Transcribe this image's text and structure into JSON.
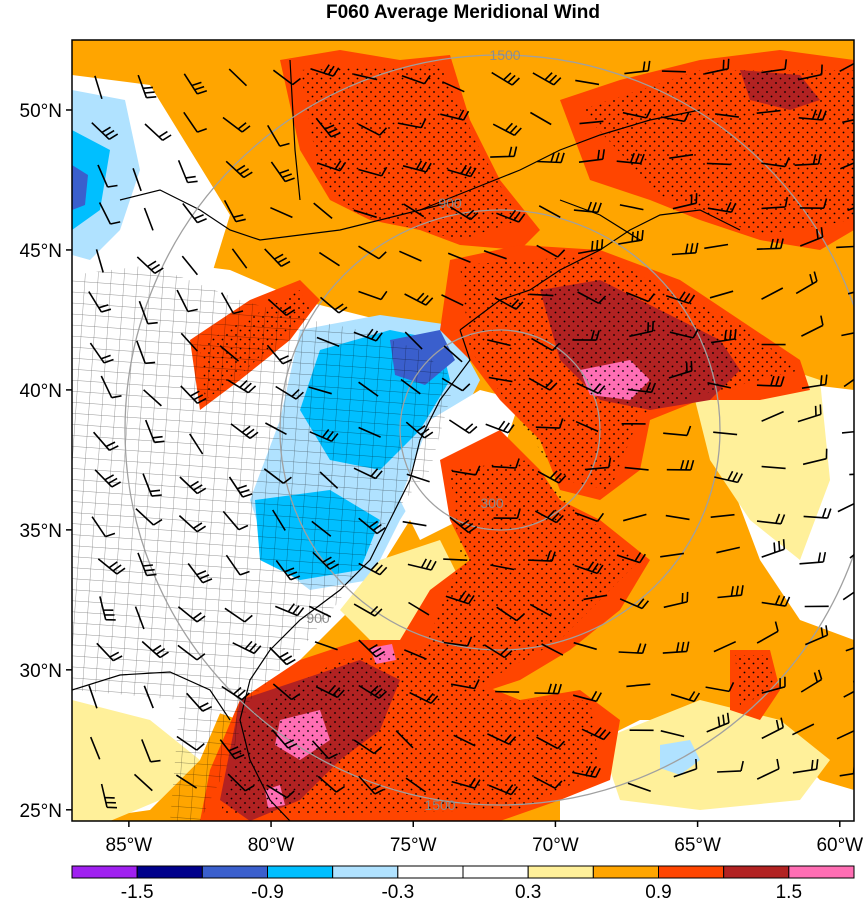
{
  "title": "F060 Average Meridional Wind",
  "map": {
    "lon_range": [
      -87,
      -59.5
    ],
    "lat_range": [
      24.6,
      52.5
    ],
    "lon_ticks": [
      {
        "value": -85,
        "label": "85°W"
      },
      {
        "value": -80,
        "label": "80°W"
      },
      {
        "value": -75,
        "label": "75°W"
      },
      {
        "value": -70,
        "label": "70°W"
      },
      {
        "value": -65,
        "label": "65°W"
      },
      {
        "value": -60,
        "label": "60°W"
      }
    ],
    "lat_ticks": [
      {
        "value": 50,
        "label": "50°N"
      },
      {
        "value": 45,
        "label": "45°N"
      },
      {
        "value": 40,
        "label": "40°N"
      },
      {
        "value": 35,
        "label": "35°N"
      },
      {
        "value": 30,
        "label": "30°N"
      },
      {
        "value": 25,
        "label": "25°N"
      }
    ],
    "range_ring_center": {
      "lon": -71.5,
      "lat": 37.2
    },
    "range_ring_labels": [
      "300",
      "900",
      "1500"
    ],
    "colorbar": {
      "colors": [
        "#a020f0",
        "#00008b",
        "#3a5fcd",
        "#00bfff",
        "#b0e2ff",
        "#ffffff",
        "#ffffff",
        "#fff09a",
        "#ffa500",
        "#ff4500",
        "#b22222",
        "#ff6eb4"
      ],
      "labels": [
        "-1.5",
        "-0.9",
        "-0.3",
        "0.3",
        "0.9",
        "1.5"
      ]
    }
  }
}
